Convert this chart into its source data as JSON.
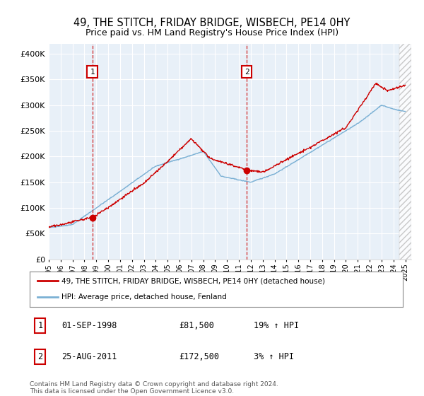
{
  "title": "49, THE STITCH, FRIDAY BRIDGE, WISBECH, PE14 0HY",
  "subtitle": "Price paid vs. HM Land Registry's House Price Index (HPI)",
  "ylim": [
    0,
    420000
  ],
  "yticks": [
    0,
    50000,
    100000,
    150000,
    200000,
    250000,
    300000,
    350000,
    400000
  ],
  "ytick_labels": [
    "£0",
    "£50K",
    "£100K",
    "£150K",
    "£200K",
    "£250K",
    "£300K",
    "£350K",
    "£400K"
  ],
  "xlim_start": 1995.0,
  "xlim_end": 2025.5,
  "sale1_x": 1998.67,
  "sale1_y": 81500,
  "sale2_x": 2011.65,
  "sale2_y": 172500,
  "red_color": "#cc0000",
  "blue_color": "#7ab0d4",
  "plot_bg": "#e8f0f8",
  "hatch_start": 2024.5,
  "legend_label_red": "49, THE STITCH, FRIDAY BRIDGE, WISBECH, PE14 0HY (detached house)",
  "legend_label_blue": "HPI: Average price, detached house, Fenland",
  "table_row1": [
    "1",
    "01-SEP-1998",
    "£81,500",
    "19% ↑ HPI"
  ],
  "table_row2": [
    "2",
    "25-AUG-2011",
    "£172,500",
    "3% ↑ HPI"
  ],
  "footer": "Contains HM Land Registry data © Crown copyright and database right 2024.\nThis data is licensed under the Open Government Licence v3.0."
}
